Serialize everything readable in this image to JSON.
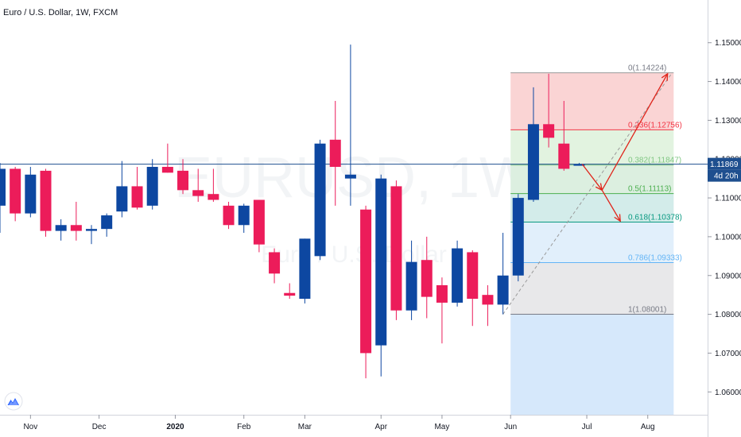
{
  "chart_data": {
    "type": "candlestick",
    "title": "Euro / U.S. Dollar, 1W, FXCM",
    "watermark": {
      "symbol": "EURUSD, 1W",
      "name": "Euro / U.S. Dollar"
    },
    "ylim": [
      1.0535,
      1.1565
    ],
    "y_ticks": [
      "1.15000",
      "1.14000",
      "1.13000",
      "1.12000",
      "1.11000",
      "1.10000",
      "1.09000",
      "1.08000",
      "1.07000",
      "1.06000"
    ],
    "y_tick_values": [
      1.15,
      1.14,
      1.13,
      1.12,
      1.11,
      1.1,
      1.09,
      1.08,
      1.07,
      1.06
    ],
    "x_ticks": [
      {
        "label": "Nov",
        "bar": 2
      },
      {
        "label": "Dec",
        "bar": 6.5
      },
      {
        "label": "2020",
        "bar": 11.5,
        "bold": true
      },
      {
        "label": "Feb",
        "bar": 16
      },
      {
        "label": "Mar",
        "bar": 20
      },
      {
        "label": "Apr",
        "bar": 25
      },
      {
        "label": "May",
        "bar": 29
      },
      {
        "label": "Jun",
        "bar": 33.5
      },
      {
        "label": "Jul",
        "bar": 38.5
      },
      {
        "label": "Aug",
        "bar": 42.5
      }
    ],
    "candles": [
      {
        "o": 1.108,
        "h": 1.119,
        "l": 1.101,
        "c": 1.1175
      },
      {
        "o": 1.1175,
        "h": 1.118,
        "l": 1.104,
        "c": 1.106
      },
      {
        "o": 1.106,
        "h": 1.118,
        "l": 1.105,
        "c": 1.116
      },
      {
        "o": 1.117,
        "h": 1.1175,
        "l": 1.1,
        "c": 1.1015
      },
      {
        "o": 1.1015,
        "h": 1.1045,
        "l": 1.099,
        "c": 1.103
      },
      {
        "o": 1.103,
        "h": 1.109,
        "l": 1.099,
        "c": 1.1015
      },
      {
        "o": 1.1015,
        "h": 1.103,
        "l": 1.0981,
        "c": 1.102
      },
      {
        "o": 1.102,
        "h": 1.106,
        "l": 1.1,
        "c": 1.1055
      },
      {
        "o": 1.1065,
        "h": 1.1195,
        "l": 1.105,
        "c": 1.113
      },
      {
        "o": 1.113,
        "h": 1.118,
        "l": 1.107,
        "c": 1.1075
      },
      {
        "o": 1.108,
        "h": 1.12,
        "l": 1.107,
        "c": 1.118
      },
      {
        "o": 1.118,
        "h": 1.124,
        "l": 1.1165,
        "c": 1.1165
      },
      {
        "o": 1.117,
        "h": 1.12,
        "l": 1.111,
        "c": 1.112
      },
      {
        "o": 1.112,
        "h": 1.1175,
        "l": 1.109,
        "c": 1.1105
      },
      {
        "o": 1.111,
        "h": 1.1175,
        "l": 1.109,
        "c": 1.1095
      },
      {
        "o": 1.108,
        "h": 1.109,
        "l": 1.102,
        "c": 1.103
      },
      {
        "o": 1.103,
        "h": 1.1085,
        "l": 1.101,
        "c": 1.108
      },
      {
        "o": 1.1095,
        "h": 1.1095,
        "l": 1.096,
        "c": 1.098
      },
      {
        "o": 1.096,
        "h": 1.097,
        "l": 1.088,
        "c": 1.0905
      },
      {
        "o": 1.0855,
        "h": 1.088,
        "l": 1.084,
        "c": 1.0848
      },
      {
        "o": 1.084,
        "h": 1.0995,
        "l": 1.0828,
        "c": 1.0995
      },
      {
        "o": 1.095,
        "h": 1.125,
        "l": 1.094,
        "c": 1.124
      },
      {
        "o": 1.125,
        "h": 1.135,
        "l": 1.108,
        "c": 1.118
      },
      {
        "o": 1.115,
        "h": 1.1495,
        "l": 1.108,
        "c": 1.116
      },
      {
        "o": 1.107,
        "h": 1.108,
        "l": 1.0635,
        "c": 1.07
      },
      {
        "o": 1.072,
        "h": 1.116,
        "l": 1.064,
        "c": 1.115
      },
      {
        "o": 1.113,
        "h": 1.1145,
        "l": 1.0785,
        "c": 1.081
      },
      {
        "o": 1.081,
        "h": 1.099,
        "l": 1.0785,
        "c": 1.0935
      },
      {
        "o": 1.094,
        "h": 1.1,
        "l": 1.079,
        "c": 1.0845
      },
      {
        "o": 1.0875,
        "h": 1.0895,
        "l": 1.0725,
        "c": 1.083
      },
      {
        "o": 1.083,
        "h": 1.099,
        "l": 1.082,
        "c": 1.097
      },
      {
        "o": 1.096,
        "h": 1.0965,
        "l": 1.077,
        "c": 1.084
      },
      {
        "o": 1.085,
        "h": 1.0875,
        "l": 1.077,
        "c": 1.0825
      },
      {
        "o": 1.0825,
        "h": 1.101,
        "l": 1.08,
        "c": 1.09
      },
      {
        "o": 1.09,
        "h": 1.111,
        "l": 1.0885,
        "c": 1.11
      },
      {
        "o": 1.1095,
        "h": 1.1385,
        "l": 1.109,
        "c": 1.129
      },
      {
        "o": 1.129,
        "h": 1.142,
        "l": 1.123,
        "c": 1.1255
      },
      {
        "o": 1.124,
        "h": 1.135,
        "l": 1.117,
        "c": 1.1175
      },
      {
        "o": 1.1187,
        "h": 1.119,
        "l": 1.1184,
        "c": 1.1187
      }
    ],
    "current_price": "1.11869",
    "current_price_value": 1.11869,
    "countdown": "4d 20h",
    "fibonacci": {
      "bar_start": 33.5,
      "bar_end": 44.2,
      "levels": [
        {
          "ratio": 0,
          "price": 1.14224,
          "label": "0(1.14224)",
          "line_color": "#9a9a9a",
          "fill": null,
          "text_color": "#787b86"
        },
        {
          "ratio": 0.236,
          "price": 1.12756,
          "label": "0.236(1.12756)",
          "line_color": "#f23645",
          "fill": "#fad4d4",
          "text_color": "#f23645"
        },
        {
          "ratio": 0.382,
          "price": 1.11847,
          "label": "0.382(1.11847)",
          "line_color": "#81c784",
          "fill": "#e2f3e0",
          "text_color": "#81c784"
        },
        {
          "ratio": 0.5,
          "price": 1.11113,
          "label": "0.5(1.11113)",
          "line_color": "#4caf50",
          "fill": "#dcefe0",
          "text_color": "#4caf50"
        },
        {
          "ratio": 0.618,
          "price": 1.10378,
          "label": "0.618(1.10378)",
          "line_color": "#089981",
          "fill": "#d3ecea",
          "text_color": "#089981"
        },
        {
          "ratio": 0.786,
          "price": 1.09333,
          "label": "0.786(1.09333)",
          "line_color": "#64b5f6",
          "fill": "#e1effb",
          "text_color": "#64b5f6"
        },
        {
          "ratio": 1,
          "price": 1.08001,
          "label": "1(1.08001)",
          "line_color": "#787b86",
          "fill": "#e8e8ea",
          "text_color": "#787b86"
        }
      ],
      "extension_fill": "#d6e8fb"
    },
    "arrows": [
      {
        "from": {
          "bar": 38.2,
          "price": 1.1187
        },
        "to": {
          "bar": 39.5,
          "price": 1.112
        }
      },
      {
        "from": {
          "bar": 39.5,
          "price": 1.112
        },
        "to": {
          "bar": 43.8,
          "price": 1.142
        }
      },
      {
        "from": {
          "bar": 39.5,
          "price": 1.112
        },
        "to": {
          "bar": 40.7,
          "price": 1.104
        }
      }
    ],
    "colors": {
      "up": "#0d47a1",
      "down": "#ec1c5a",
      "price_line": "#1e4f8f",
      "arrow": "#e0251b"
    },
    "grid": false,
    "legend": "none"
  }
}
